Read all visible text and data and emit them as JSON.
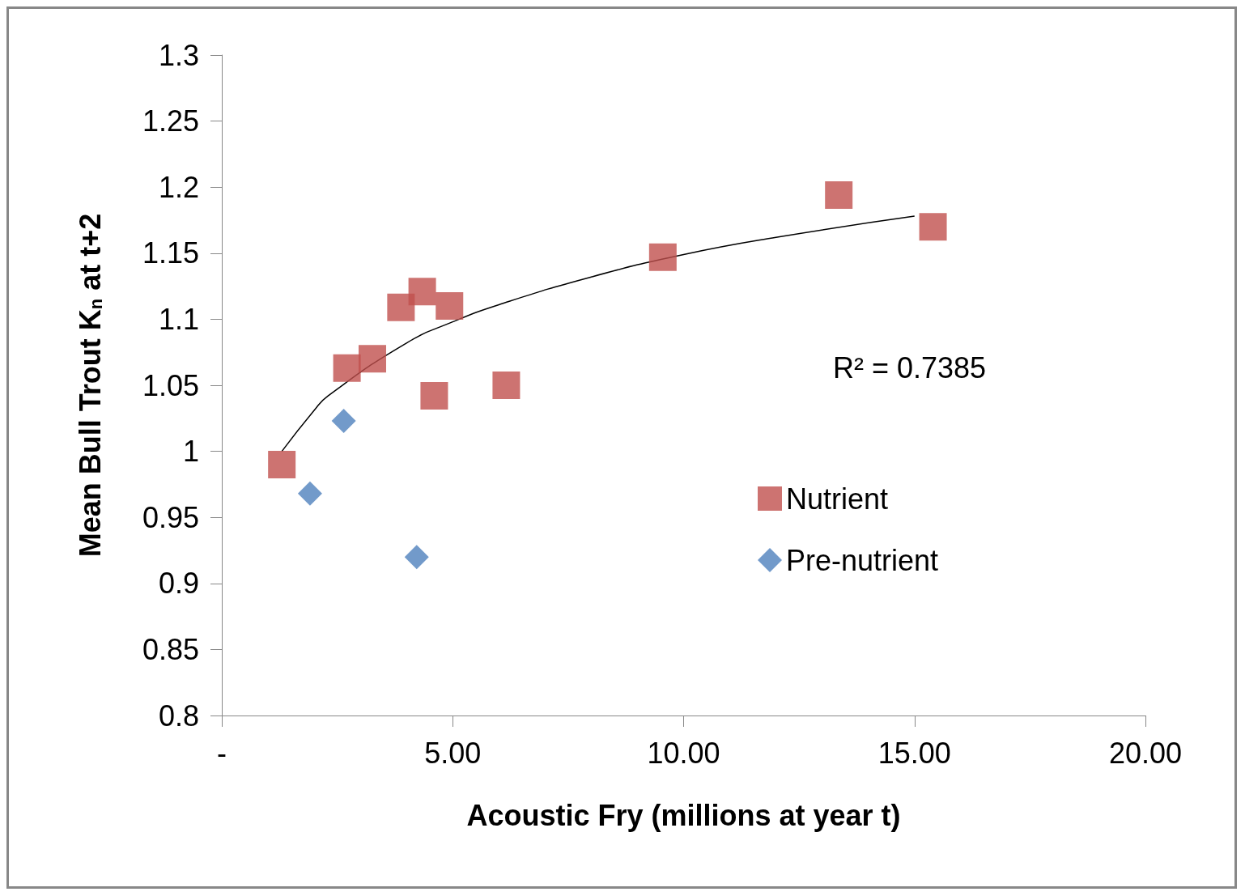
{
  "chart_data": {
    "type": "scatter",
    "xlabel": "Acoustic Fry (millions at year t)",
    "ylabel": "Mean Bull Trout K$_{n}$ at t+2",
    "annotations": [
      "R² = 0.7385"
    ],
    "xlim": [
      0,
      20
    ],
    "xticks": [
      {
        "value": 0,
        "label": "-"
      },
      {
        "value": 5,
        "label": "5.00"
      },
      {
        "value": 10,
        "label": "10.00"
      },
      {
        "value": 15,
        "label": "15.00"
      },
      {
        "value": 20,
        "label": "20.00"
      }
    ],
    "ylim": [
      0.8,
      1.3
    ],
    "yticks": [
      0.8,
      0.85,
      0.9,
      0.95,
      1,
      1.05,
      1.1,
      1.15,
      1.2,
      1.25,
      1.3
    ],
    "grid": false,
    "legend": "right",
    "series": [
      {
        "name": "Nutrient",
        "color": "#c0504d",
        "marker": "square",
        "x": [
          1.3,
          2.71,
          3.26,
          3.88,
          4.34,
          4.93,
          4.6,
          6.16,
          9.55,
          13.36,
          15.4
        ],
        "values": [
          0.99,
          1.063,
          1.07,
          1.109,
          1.121,
          1.11,
          1.042,
          1.05,
          1.147,
          1.194,
          1.17
        ]
      },
      {
        "name": "Pre-nutrient",
        "color": "#4f81bd",
        "marker": "diamond",
        "x": [
          2.64,
          1.91,
          4.22
        ],
        "values": [
          1.023,
          0.968,
          0.92
        ]
      },
      {
        "type": "line",
        "color": "#000000",
        "marker": "none",
        "x": [
          1.3,
          2,
          2.3,
          4,
          5,
          6,
          8,
          10,
          12,
          15
        ],
        "values": [
          1.0,
          1.031,
          1.042,
          1.082,
          1.098,
          1.111,
          1.132,
          1.149,
          1.162,
          1.178
        ]
      }
    ]
  }
}
